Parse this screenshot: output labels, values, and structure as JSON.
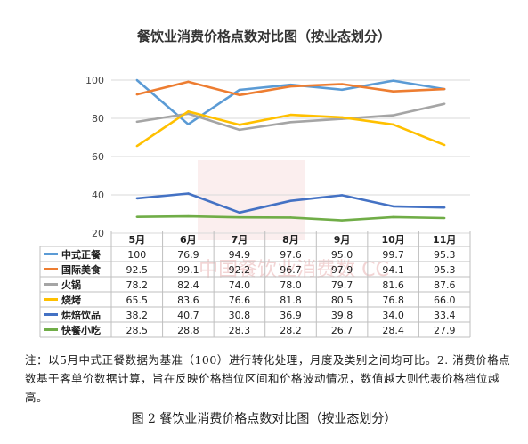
{
  "chart_data": {
    "type": "line",
    "title": "餐饮业消费价格点数对比图（按业态划分）",
    "categories": [
      "5月",
      "6月",
      "7月",
      "8月",
      "9月",
      "10月",
      "11月"
    ],
    "ylim": [
      20,
      100
    ],
    "yticks": [
      20,
      40,
      60,
      80,
      100
    ],
    "grid": true,
    "legend": "table-bottom",
    "series": [
      {
        "name": "中式正餐",
        "color": "#5B9BD5",
        "values": [
          100,
          76.9,
          94.9,
          97.6,
          95.0,
          99.7,
          95.3
        ]
      },
      {
        "name": "国际美食",
        "color": "#ED7D31",
        "values": [
          92.5,
          99.1,
          92.2,
          96.7,
          97.9,
          94.1,
          95.3
        ]
      },
      {
        "name": "火锅",
        "color": "#A5A5A5",
        "values": [
          78.2,
          82.4,
          74.0,
          78.0,
          79.7,
          81.6,
          87.6
        ]
      },
      {
        "name": "烧烤",
        "color": "#FFC000",
        "values": [
          65.5,
          83.6,
          76.6,
          81.8,
          80.5,
          76.8,
          66.0
        ]
      },
      {
        "name": "烘焙饮品",
        "color": "#4472C4",
        "values": [
          38.2,
          40.7,
          30.8,
          36.9,
          39.8,
          34.0,
          33.4
        ]
      },
      {
        "name": "快餐小吃",
        "color": "#70AD47",
        "values": [
          28.5,
          28.8,
          28.3,
          28.2,
          26.7,
          28.4,
          27.9
        ]
      }
    ]
  },
  "value_labels": [
    [
      "100",
      "76.9",
      "94.9",
      "97.6",
      "95.0",
      "99.7",
      "95.3"
    ],
    [
      "92.5",
      "99.1",
      "92.2",
      "96.7",
      "97.9",
      "94.1",
      "95.3"
    ],
    [
      "78.2",
      "82.4",
      "74.0",
      "78.0",
      "79.7",
      "81.6",
      "87.6"
    ],
    [
      "65.5",
      "83.6",
      "76.6",
      "81.8",
      "80.5",
      "76.8",
      "66.0"
    ],
    [
      "38.2",
      "40.7",
      "30.8",
      "36.9",
      "39.8",
      "34.0",
      "33.4"
    ],
    [
      "28.5",
      "28.8",
      "28.3",
      "28.2",
      "26.7",
      "28.4",
      "27.9"
    ]
  ],
  "watermark_text": "中国餐饮业消费数 CC",
  "note": "注：以5月中式正餐数据为基准（100）进行转化处理，月度及类别之间均可比。2. 消费价格点数基于客单价数据计算，旨在反映价格档位区间和价格波动情况，数值越大则代表价格档位越高。",
  "caption": "图 2  餐饮业消费价格点数对比图（按业态划分）"
}
